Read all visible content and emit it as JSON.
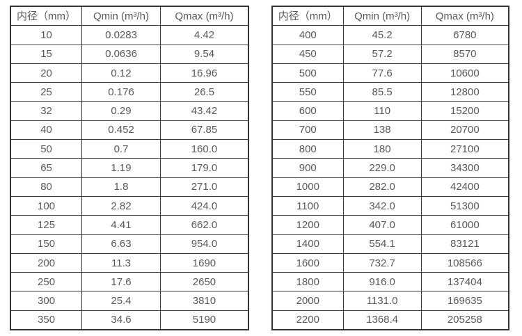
{
  "colors": {
    "background": "#ffffff",
    "border": "#3a3a3a",
    "text": "#595959"
  },
  "tables": [
    {
      "name": "flow-rate-table-small-diameters",
      "headers": [
        "内径（mm）",
        "Qmin (m³/h)",
        "Qmax (m³/h)"
      ],
      "columns": [
        "diameter",
        "qmin",
        "qmax"
      ],
      "rows": [
        [
          "10",
          "0.0283",
          "4.42"
        ],
        [
          "15",
          "0.0636",
          "9.54"
        ],
        [
          "20",
          "0.12",
          "16.96"
        ],
        [
          "25",
          "0.176",
          "26.5"
        ],
        [
          "32",
          "0.29",
          "43.42"
        ],
        [
          "40",
          "0.452",
          "67.85"
        ],
        [
          "50",
          "0.7",
          "160.0"
        ],
        [
          "65",
          "1.19",
          "179.0"
        ],
        [
          "80",
          "1.8",
          "271.0"
        ],
        [
          "100",
          "2.82",
          "424.0"
        ],
        [
          "125",
          "4.41",
          "662.0"
        ],
        [
          "150",
          "6.63",
          "954.0"
        ],
        [
          "200",
          "11.3",
          "1690"
        ],
        [
          "250",
          "17.6",
          "2650"
        ],
        [
          "300",
          "25.4",
          "3810"
        ],
        [
          "350",
          "34.6",
          "5190"
        ]
      ]
    },
    {
      "name": "flow-rate-table-large-diameters",
      "headers": [
        "内径（mm）",
        "Qmin (m³/h)",
        "Qmax (m³/h)"
      ],
      "columns": [
        "diameter",
        "qmin",
        "qmax"
      ],
      "rows": [
        [
          "400",
          "45.2",
          "6780"
        ],
        [
          "450",
          "57.2",
          "8570"
        ],
        [
          "500",
          "77.6",
          "10600"
        ],
        [
          "550",
          "85.5",
          "12800"
        ],
        [
          "600",
          "110",
          "15200"
        ],
        [
          "700",
          "138",
          "20700"
        ],
        [
          "800",
          "180",
          "27100"
        ],
        [
          "900",
          "229.0",
          "34300"
        ],
        [
          "1000",
          "282.0",
          "42400"
        ],
        [
          "1100",
          "342.0",
          "51300"
        ],
        [
          "1200",
          "407.0",
          "61000"
        ],
        [
          "1400",
          "554.1",
          "83121"
        ],
        [
          "1600",
          "732.7",
          "108566"
        ],
        [
          "1800",
          "916.0",
          "137404"
        ],
        [
          "2000",
          "1131.0",
          "169635"
        ],
        [
          "2200",
          "1368.4",
          "205258"
        ]
      ]
    }
  ]
}
